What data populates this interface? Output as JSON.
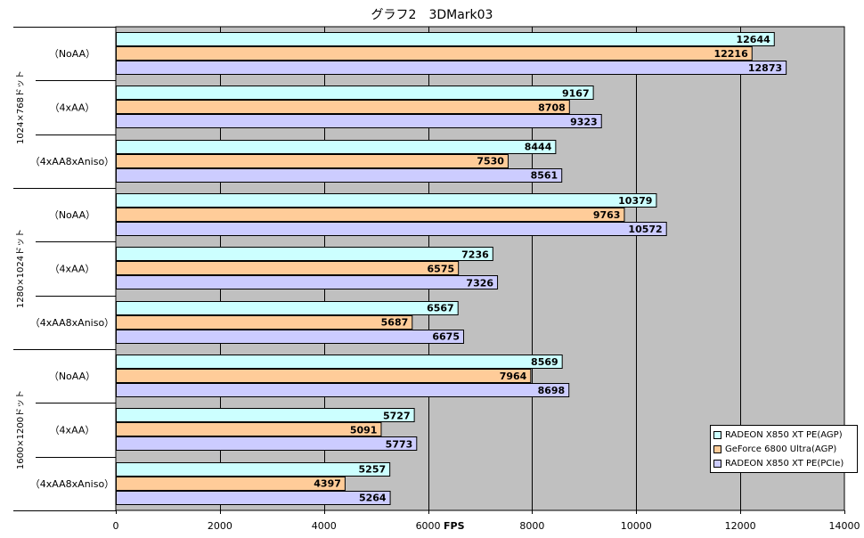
{
  "chart_data": {
    "type": "bar",
    "orientation": "horizontal",
    "title": "グラフ2　3DMark03",
    "xlabel": "FPS",
    "xlim": [
      0,
      14000
    ],
    "xticks": [
      0,
      2000,
      4000,
      6000,
      8000,
      10000,
      12000,
      14000
    ],
    "grid": true,
    "legend_position": "bottom-right",
    "series": [
      {
        "name": "RADEON X850 XT PE(AGP)",
        "color": "#ccffff",
        "values": [
          12644,
          9167,
          8444,
          10379,
          7236,
          6567,
          8569,
          5727,
          5257
        ]
      },
      {
        "name": "GeForce 6800 Ultra(AGP)",
        "color": "#ffcc99",
        "values": [
          12216,
          8708,
          7530,
          9763,
          6575,
          5687,
          7964,
          5091,
          4397
        ]
      },
      {
        "name": "RADEON X850 XT PE(PCIe)",
        "color": "#ccccff",
        "values": [
          12873,
          9323,
          8561,
          10572,
          7326,
          6675,
          8698,
          5773,
          5264
        ]
      }
    ],
    "groups": [
      {
        "label": "1024×768ドット",
        "categories": [
          "（NoAA）",
          "（4xAA）",
          "（4xAA8xAniso）"
        ]
      },
      {
        "label": "1280×1024ドット",
        "categories": [
          "（NoAA）",
          "（4xAA）",
          "（4xAA8xAniso）"
        ]
      },
      {
        "label": "1600×1200ドット",
        "categories": [
          "（NoAA）",
          "（4xAA）",
          "（4xAA8xAniso）"
        ]
      }
    ],
    "colors": {
      "plot_background": "#c0c0c0"
    }
  }
}
